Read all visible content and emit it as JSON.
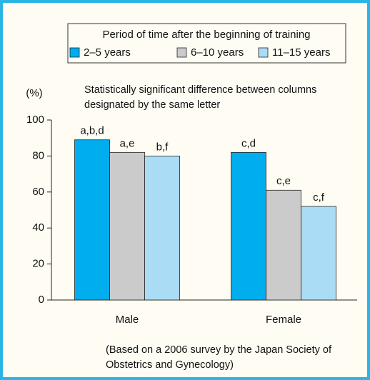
{
  "chart_data": {
    "type": "bar",
    "title": "Period of time after the beginning of training",
    "y_label": "(%)",
    "annotation": "Statistically significant difference between columns designated by the same letter",
    "footnote": "(Based on a 2006 survey by the Japan Society of Obstetrics and Gynecology)",
    "categories": [
      "Male",
      "Female"
    ],
    "series": [
      {
        "name": "2–5 years",
        "color": "#00aeef",
        "values": [
          89,
          82
        ],
        "labels": [
          "a,b,d",
          "c,d"
        ]
      },
      {
        "name": "6–10 years",
        "color": "#cbcbcb",
        "values": [
          82,
          61
        ],
        "labels": [
          "a,e",
          "c,e"
        ]
      },
      {
        "name": "11–15 years",
        "color": "#aadcf5",
        "values": [
          80,
          52
        ],
        "labels": [
          "b,f",
          "c,f"
        ]
      }
    ],
    "ylim": [
      0,
      100
    ],
    "yticks": [
      0,
      20,
      40,
      60,
      80,
      100
    ],
    "grid": false
  }
}
